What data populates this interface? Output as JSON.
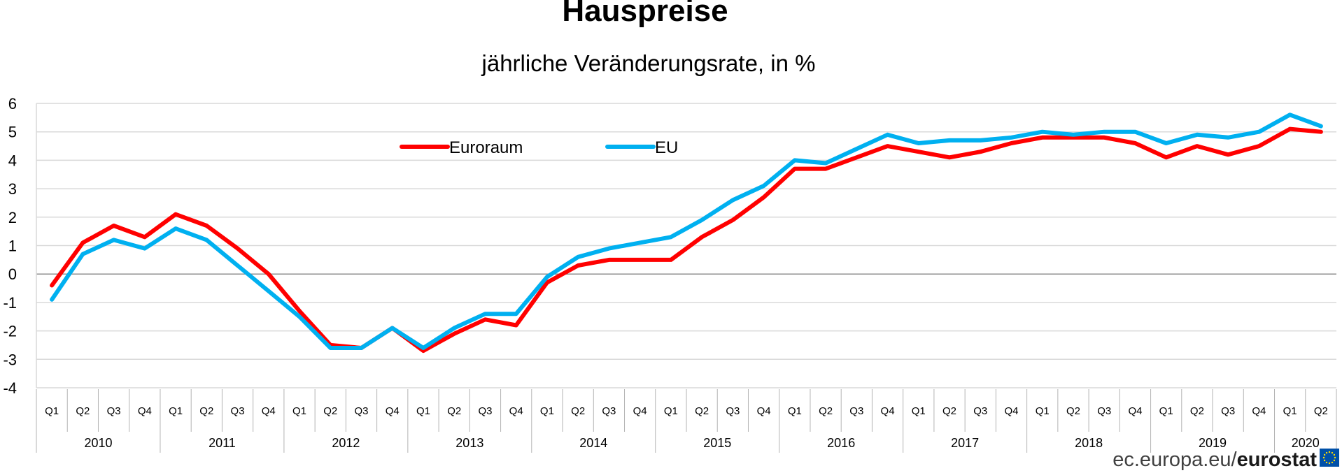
{
  "chart_data": {
    "type": "line",
    "title": "Hauspreise",
    "subtitle": "jährliche Veränderungsrate, in %",
    "ylim": [
      -4,
      6
    ],
    "yticks": [
      -4,
      -3,
      -2,
      -1,
      0,
      1,
      2,
      3,
      4,
      5,
      6
    ],
    "grid": true,
    "legend_placement": "top-center",
    "quarter_labels": [
      "Q1",
      "Q2",
      "Q3",
      "Q4"
    ],
    "years": [
      {
        "label": "2010",
        "quarters": 4
      },
      {
        "label": "2011",
        "quarters": 4
      },
      {
        "label": "2012",
        "quarters": 4
      },
      {
        "label": "2013",
        "quarters": 4
      },
      {
        "label": "2014",
        "quarters": 4
      },
      {
        "label": "2015",
        "quarters": 4
      },
      {
        "label": "2016",
        "quarters": 4
      },
      {
        "label": "2017",
        "quarters": 4
      },
      {
        "label": "2018",
        "quarters": 4
      },
      {
        "label": "2019",
        "quarters": 4
      },
      {
        "label": "2020",
        "quarters": 2
      }
    ],
    "series": [
      {
        "name": "Euroraum",
        "color": "#ff0000",
        "values": [
          -0.4,
          1.1,
          1.7,
          1.3,
          2.1,
          1.7,
          0.9,
          0.0,
          -1.3,
          -2.5,
          -2.6,
          -1.9,
          -2.7,
          -2.1,
          -1.6,
          -1.8,
          -0.3,
          0.3,
          0.5,
          0.5,
          0.5,
          1.3,
          1.9,
          2.7,
          3.7,
          3.7,
          4.1,
          4.5,
          4.3,
          4.1,
          4.3,
          4.6,
          4.8,
          4.8,
          4.8,
          4.6,
          4.1,
          4.5,
          4.2,
          4.5,
          5.1,
          5.0
        ]
      },
      {
        "name": "EU",
        "color": "#00b0f0",
        "values": [
          -0.9,
          0.7,
          1.2,
          0.9,
          1.6,
          1.2,
          0.3,
          -0.6,
          -1.5,
          -2.6,
          -2.6,
          -1.9,
          -2.6,
          -1.9,
          -1.4,
          -1.4,
          -0.1,
          0.6,
          0.9,
          1.1,
          1.3,
          1.9,
          2.6,
          3.1,
          4.0,
          3.9,
          4.4,
          4.9,
          4.6,
          4.7,
          4.7,
          4.8,
          5.0,
          4.9,
          5.0,
          5.0,
          4.6,
          4.9,
          4.8,
          5.0,
          5.6,
          5.2
        ]
      }
    ]
  },
  "source": {
    "prefix": "ec.europa.eu/",
    "brand": "eurostat",
    "logo_colors": {
      "background": "#0050a8",
      "stars": "#ffdd00"
    }
  }
}
